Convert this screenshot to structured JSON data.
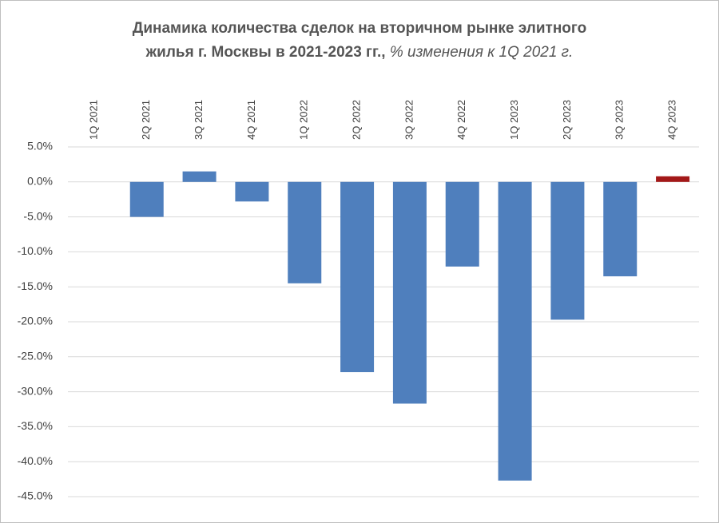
{
  "chart_data": {
    "type": "bar",
    "title": [
      "Динамика количества сделок на вторичном рынке элитного",
      "жилья г. Москвы в 2021-2023  гг.,"
    ],
    "subtitle": "% изменения  к 1Q 2021 г.",
    "categories": [
      "1Q 2021",
      "2Q 2021",
      "3Q 2021",
      "4Q 2021",
      "1Q 2022",
      "2Q 2022",
      "3Q 2022",
      "4Q 2022",
      "1Q 2023",
      "2Q 2023",
      "3Q 2023",
      "4Q 2023"
    ],
    "values": [
      0,
      -5.0,
      1.5,
      -2.8,
      -14.5,
      -27.2,
      -31.7,
      -12.1,
      -42.7,
      -19.7,
      -13.5,
      0.8
    ],
    "colors": [
      "#4f7fbd",
      "#4f7fbd",
      "#4f7fbd",
      "#4f7fbd",
      "#4f7fbd",
      "#4f7fbd",
      "#4f7fbd",
      "#4f7fbd",
      "#4f7fbd",
      "#4f7fbd",
      "#4f7fbd",
      "#a31818"
    ],
    "ylim": [
      -45,
      5
    ],
    "yticks": [
      {
        "value": -45,
        "label": "-45.0%"
      },
      {
        "value": -40,
        "label": "-40.0%"
      },
      {
        "value": -35,
        "label": "-35.0%"
      },
      {
        "value": -30,
        "label": "-30.0%"
      },
      {
        "value": -25,
        "label": "-25.0%"
      },
      {
        "value": -20,
        "label": "-20.0%"
      },
      {
        "value": -15,
        "label": "-15.0%"
      },
      {
        "value": -10,
        "label": "-10.0%"
      },
      {
        "value": -5,
        "label": "-5.0%"
      },
      {
        "value": 0,
        "label": "0.0%"
      },
      {
        "value": 5,
        "label": "5.0%"
      }
    ],
    "grid": true
  }
}
